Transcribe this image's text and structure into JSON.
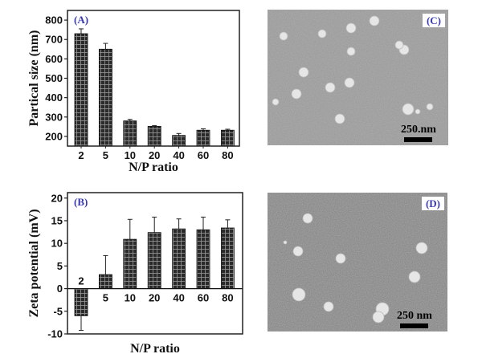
{
  "chart_data": [
    {
      "type": "bar",
      "panel_label": "(A)",
      "categories": [
        "2",
        "5",
        "10",
        "20",
        "40",
        "60",
        "80"
      ],
      "values": [
        730,
        650,
        280,
        252,
        205,
        232,
        232
      ],
      "errors": [
        25,
        30,
        8,
        4,
        10,
        7,
        5
      ],
      "xlabel": "N/P ratio",
      "ylabel": "Partical size (nm)",
      "ylim": [
        150,
        850
      ],
      "yticks": [
        200,
        300,
        400,
        500,
        600,
        700,
        800
      ]
    },
    {
      "type": "bar",
      "panel_label": "(B)",
      "categories": [
        "2",
        "5",
        "10",
        "20",
        "40",
        "60",
        "80"
      ],
      "values": [
        -6.0,
        3.1,
        10.9,
        12.4,
        13.2,
        13.0,
        13.4
      ],
      "errors": [
        3.2,
        4.2,
        4.4,
        3.4,
        2.2,
        2.8,
        1.8
      ],
      "xlabel": "N/P ratio",
      "ylabel": "Zeta potential (mV)",
      "ylim": [
        -10,
        21.2
      ],
      "yticks": [
        -10,
        -5,
        0,
        5,
        10,
        15,
        20
      ]
    }
  ],
  "images": [
    {
      "panel_label": "(C)",
      "scale_bar": "250.nm"
    },
    {
      "panel_label": "(D)",
      "scale_bar": "250 nm"
    }
  ]
}
